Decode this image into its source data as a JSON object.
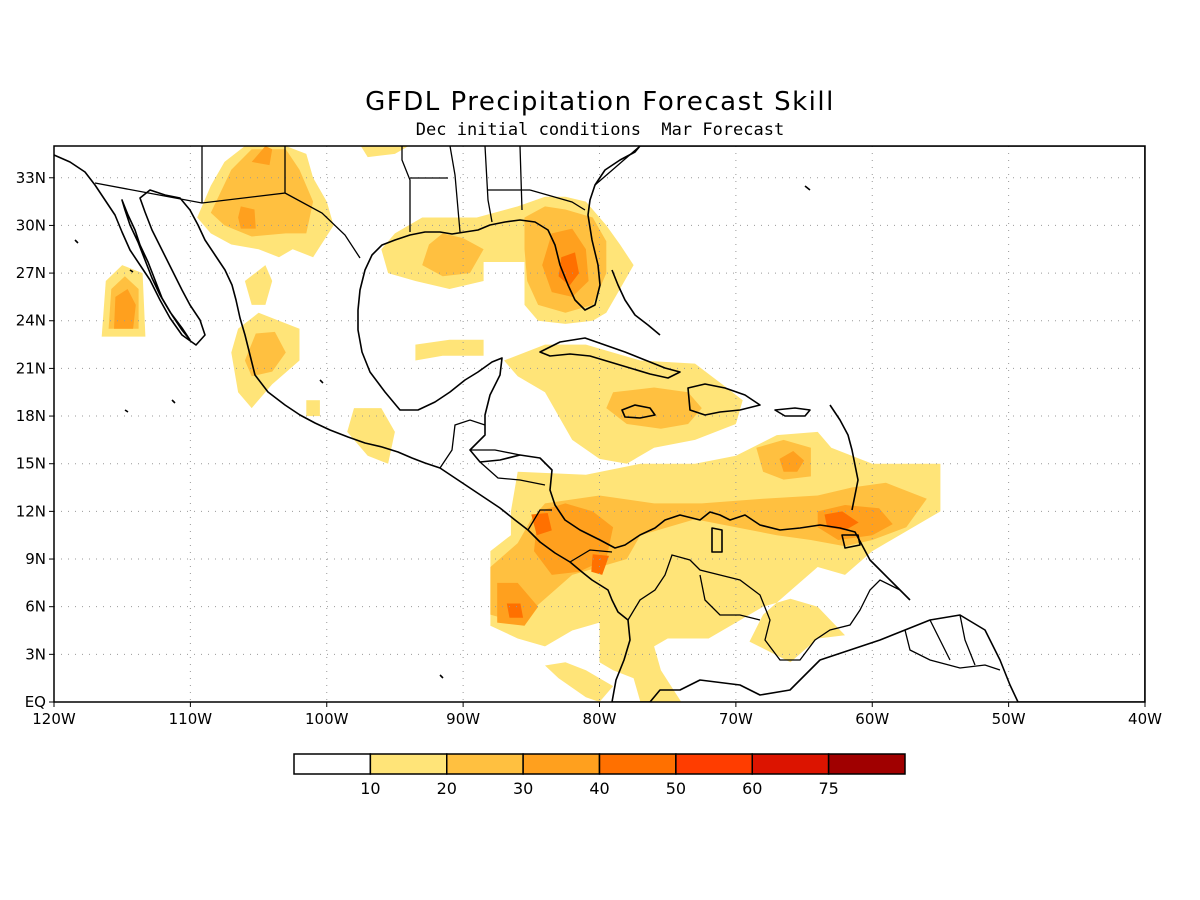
{
  "title": "GFDL Precipitation Forecast Skill",
  "subtitle": "Dec initial conditions  Mar Forecast",
  "map": {
    "lon_range": [
      -120,
      -40
    ],
    "lat_range": [
      0,
      35
    ],
    "lon_ticks": [
      {
        "value": -120,
        "label": "120W"
      },
      {
        "value": -110,
        "label": "110W"
      },
      {
        "value": -100,
        "label": "100W"
      },
      {
        "value": -90,
        "label": "90W"
      },
      {
        "value": -80,
        "label": "80W"
      },
      {
        "value": -70,
        "label": "70W"
      },
      {
        "value": -60,
        "label": "60W"
      },
      {
        "value": -50,
        "label": "50W"
      },
      {
        "value": -40,
        "label": "40W"
      }
    ],
    "lat_ticks": [
      {
        "value": 0,
        "label": "EQ"
      },
      {
        "value": 3,
        "label": "3N"
      },
      {
        "value": 6,
        "label": "6N"
      },
      {
        "value": 9,
        "label": "9N"
      },
      {
        "value": 12,
        "label": "12N"
      },
      {
        "value": 15,
        "label": "15N"
      },
      {
        "value": 18,
        "label": "18N"
      },
      {
        "value": 21,
        "label": "21N"
      },
      {
        "value": 24,
        "label": "24N"
      },
      {
        "value": 27,
        "label": "27N"
      },
      {
        "value": 30,
        "label": "30N"
      },
      {
        "value": 33,
        "label": "33N"
      }
    ],
    "grid": true
  },
  "colorbar": {
    "levels": [
      "10",
      "20",
      "30",
      "40",
      "50",
      "60",
      "75"
    ],
    "colors": [
      "#ffffff",
      "#ffe478",
      "#ffc040",
      "#ffa01e",
      "#ff7000",
      "#ff3d00",
      "#dc1400",
      "#a00000"
    ]
  },
  "skill_regions": [
    {
      "name": "baja",
      "level": 1,
      "lonlat": [
        [
          -116.5,
          23
        ],
        [
          -116.2,
          26.5
        ],
        [
          -115.0,
          27.5
        ],
        [
          -113.5,
          27.0
        ],
        [
          -113.3,
          23.0
        ]
      ]
    },
    {
      "name": "baja",
      "level": 2,
      "lonlat": [
        [
          -116.0,
          23.5
        ],
        [
          -115.8,
          26.0
        ],
        [
          -114.8,
          26.8
        ],
        [
          -113.8,
          26.0
        ],
        [
          -113.8,
          23.5
        ]
      ]
    },
    {
      "name": "baja",
      "level": 3,
      "lonlat": [
        [
          -115.6,
          23.5
        ],
        [
          -115.5,
          25.5
        ],
        [
          -114.6,
          26.0
        ],
        [
          -114.0,
          25.0
        ],
        [
          -114.2,
          23.5
        ]
      ]
    },
    {
      "name": "nw-mexico",
      "level": 1,
      "lonlat": [
        [
          -109.5,
          30.5
        ],
        [
          -108.5,
          32.5
        ],
        [
          -107.5,
          34.0
        ],
        [
          -106,
          35
        ],
        [
          -103,
          35
        ],
        [
          -101.5,
          34.5
        ],
        [
          -101.0,
          33.0
        ],
        [
          -100.0,
          31.5
        ],
        [
          -99.5,
          30.0
        ],
        [
          -101.0,
          28.0
        ],
        [
          -102.5,
          28.5
        ],
        [
          -103.5,
          28.0
        ],
        [
          -105.0,
          28.5
        ],
        [
          -107.0,
          28.8
        ],
        [
          -108.5,
          29.5
        ]
      ]
    },
    {
      "name": "nw-mexico",
      "level": 2,
      "lonlat": [
        [
          -108.5,
          30.8
        ],
        [
          -107.0,
          33.5
        ],
        [
          -105.5,
          34.8
        ],
        [
          -103.0,
          34.8
        ],
        [
          -102.0,
          33.5
        ],
        [
          -101.0,
          31.5
        ],
        [
          -101.5,
          29.5
        ],
        [
          -103.0,
          29.5
        ],
        [
          -105.5,
          29.3
        ],
        [
          -107.5,
          30.0
        ]
      ]
    },
    {
      "name": "nw-mexico",
      "level": 3,
      "lonlat": [
        [
          -106.5,
          30.5
        ],
        [
          -106.3,
          31.2
        ],
        [
          -105.3,
          31.0
        ],
        [
          -105.2,
          29.8
        ],
        [
          -106.3,
          29.8
        ]
      ]
    },
    {
      "name": "nw-mexico",
      "level": 3,
      "lonlat": [
        [
          -105.5,
          34.0
        ],
        [
          -104.5,
          35.0
        ],
        [
          -104.0,
          34.8
        ],
        [
          -104.2,
          33.8
        ]
      ]
    },
    {
      "name": "gulf-coast",
      "level": 1,
      "lonlat": [
        [
          -96,
          28.5
        ],
        [
          -95,
          29.5
        ],
        [
          -93,
          30.5
        ],
        [
          -91,
          30.5
        ],
        [
          -89,
          30.5
        ],
        [
          -86,
          31.2
        ],
        [
          -84,
          31.8
        ],
        [
          -82.5,
          31.8
        ],
        [
          -81,
          31.5
        ],
        [
          -79.5,
          30.0
        ],
        [
          -78.5,
          28.8
        ],
        [
          -77.5,
          27.5
        ],
        [
          -78.5,
          26.0
        ],
        [
          -79.5,
          24.5
        ],
        [
          -80.5,
          24.0
        ],
        [
          -82.5,
          23.8
        ],
        [
          -84.5,
          24.0
        ],
        [
          -85.5,
          25.0
        ],
        [
          -85.5,
          27.7
        ],
        [
          -88.5,
          27.7
        ],
        [
          -88.5,
          26.5
        ],
        [
          -91.0,
          26.0
        ],
        [
          -93.5,
          26.5
        ],
        [
          -95.5,
          27.0
        ]
      ]
    },
    {
      "name": "gulf-coast",
      "level": 2,
      "lonlat": [
        [
          -92.5,
          28.8
        ],
        [
          -91.5,
          29.5
        ],
        [
          -90.0,
          29.2
        ],
        [
          -88.5,
          28.5
        ],
        [
          -89.5,
          27.0
        ],
        [
          -91.5,
          26.8
        ],
        [
          -93.0,
          27.5
        ]
      ]
    },
    {
      "name": "gulf-coast",
      "level": 2,
      "lonlat": [
        [
          -85.5,
          30.5
        ],
        [
          -84,
          31.2
        ],
        [
          -82.5,
          31.0
        ],
        [
          -80.5,
          30.5
        ],
        [
          -79.5,
          29.0
        ],
        [
          -79.5,
          27.0
        ],
        [
          -80.5,
          25.0
        ],
        [
          -82.5,
          24.5
        ],
        [
          -84.5,
          25.0
        ],
        [
          -85.3,
          26.5
        ],
        [
          -85.5,
          28.5
        ]
      ]
    },
    {
      "name": "gulf-coast",
      "level": 3,
      "lonlat": [
        [
          -83.5,
          29.5
        ],
        [
          -82.0,
          29.8
        ],
        [
          -81.0,
          28.5
        ],
        [
          -80.8,
          26.5
        ],
        [
          -82.0,
          25.5
        ],
        [
          -83.5,
          25.8
        ],
        [
          -84.2,
          27.5
        ]
      ]
    },
    {
      "name": "gulf-coast",
      "level": 4,
      "lonlat": [
        [
          -82.8,
          28.0
        ],
        [
          -81.8,
          28.3
        ],
        [
          -81.5,
          27.0
        ],
        [
          -82.2,
          26.2
        ],
        [
          -83.0,
          26.8
        ]
      ]
    },
    {
      "name": "gulf-coast",
      "level": 1,
      "lonlat": [
        [
          -97.5,
          35
        ],
        [
          -94,
          35
        ],
        [
          -95,
          34.5
        ],
        [
          -97,
          34.3
        ]
      ]
    },
    {
      "name": "w-mexico",
      "level": 1,
      "lonlat": [
        [
          -107,
          22
        ],
        [
          -106.5,
          23.5
        ],
        [
          -105.0,
          24.5
        ],
        [
          -103.5,
          24.0
        ],
        [
          -102.0,
          23.5
        ],
        [
          -102.0,
          21.5
        ],
        [
          -104.0,
          20.0
        ],
        [
          -105.5,
          18.5
        ],
        [
          -106.5,
          19.5
        ]
      ]
    },
    {
      "name": "w-mexico",
      "level": 2,
      "lonlat": [
        [
          -105.2,
          23.2
        ],
        [
          -103.8,
          23.3
        ],
        [
          -103.0,
          22.0
        ],
        [
          -104.0,
          20.8
        ],
        [
          -105.5,
          20.5
        ],
        [
          -106.0,
          21.5
        ]
      ]
    },
    {
      "name": "w-mexico",
      "level": 1,
      "lonlat": [
        [
          -106.0,
          26.5
        ],
        [
          -104.5,
          27.5
        ],
        [
          -104.0,
          26.5
        ],
        [
          -104.5,
          25.0
        ],
        [
          -105.5,
          25.0
        ]
      ]
    },
    {
      "name": "s-mexico",
      "level": 1,
      "lonlat": [
        [
          -98.0,
          18.5
        ],
        [
          -96.0,
          18.5
        ],
        [
          -95.0,
          17.0
        ],
        [
          -95.5,
          15.0
        ],
        [
          -97.0,
          15.5
        ],
        [
          -98.5,
          17.0
        ]
      ]
    },
    {
      "name": "s-mexico",
      "level": 1,
      "lonlat": [
        [
          -101.5,
          19.0
        ],
        [
          -100.5,
          19.0
        ],
        [
          -100.5,
          18.0
        ],
        [
          -101.5,
          18.0
        ]
      ]
    },
    {
      "name": "yucatan-n",
      "level": 1,
      "lonlat": [
        [
          -93.5,
          22.5
        ],
        [
          -91,
          22.8
        ],
        [
          -88.5,
          22.8
        ],
        [
          -88.5,
          21.8
        ],
        [
          -91.5,
          21.8
        ],
        [
          -93.5,
          21.5
        ]
      ]
    },
    {
      "name": "caribbean",
      "level": 1,
      "lonlat": [
        [
          -87,
          21.5
        ],
        [
          -84,
          22.5
        ],
        [
          -81,
          22.5
        ],
        [
          -77,
          21.5
        ],
        [
          -73,
          21.3
        ],
        [
          -71,
          20.0
        ],
        [
          -69.5,
          19.0
        ],
        [
          -70,
          17.5
        ],
        [
          -73,
          16.5
        ],
        [
          -76,
          16.0
        ],
        [
          -78,
          15.0
        ],
        [
          -80,
          15.3
        ],
        [
          -82,
          16.5
        ],
        [
          -84,
          19.5
        ],
        [
          -86,
          20.5
        ]
      ]
    },
    {
      "name": "caribbean",
      "level": 2,
      "lonlat": [
        [
          -79,
          19.5
        ],
        [
          -76,
          19.8
        ],
        [
          -73.5,
          19.5
        ],
        [
          -72.5,
          18.5
        ],
        [
          -73.5,
          17.5
        ],
        [
          -75.5,
          17.2
        ],
        [
          -78,
          17.5
        ],
        [
          -79.5,
          18.5
        ]
      ]
    },
    {
      "name": "caribbean-south",
      "level": 1,
      "lonlat": [
        [
          -86,
          14.5
        ],
        [
          -81,
          14.3
        ],
        [
          -77,
          15.0
        ],
        [
          -73,
          15.0
        ],
        [
          -70,
          15.5
        ],
        [
          -67,
          16.8
        ],
        [
          -64,
          17.0
        ],
        [
          -63,
          16.0
        ],
        [
          -60,
          15.0
        ],
        [
          -57,
          15.0
        ],
        [
          -55,
          15.0
        ],
        [
          -55,
          12.0
        ],
        [
          -58,
          10.5
        ],
        [
          -60,
          9.5
        ],
        [
          -62,
          8.0
        ],
        [
          -64,
          8.5
        ],
        [
          -66,
          7.0
        ],
        [
          -68,
          5.5
        ],
        [
          -69,
          3.8
        ],
        [
          -66,
          2.5
        ],
        [
          -64,
          4.0
        ],
        [
          -62,
          4.2
        ],
        [
          -64,
          6.0
        ],
        [
          -66,
          6.5
        ],
        [
          -68,
          6.0
        ],
        [
          -70,
          5.0
        ],
        [
          -72,
          4.0
        ],
        [
          -75,
          4.0
        ],
        [
          -76,
          3.5
        ],
        [
          -75.5,
          2.0
        ],
        [
          -74,
          0.0
        ],
        [
          -77,
          0.0
        ],
        [
          -77.5,
          1.5
        ],
        [
          -79,
          2.0
        ],
        [
          -80,
          2.5
        ],
        [
          -80,
          5.0
        ],
        [
          -82,
          4.5
        ],
        [
          -84,
          3.5
        ],
        [
          -86,
          4.0
        ],
        [
          -88,
          4.8
        ],
        [
          -88,
          9.5
        ],
        [
          -86.5,
          10.5
        ],
        [
          -86.5,
          12.0
        ]
      ]
    },
    {
      "name": "caribbean-south",
      "level": 2,
      "lonlat": [
        [
          -84,
          12.5
        ],
        [
          -80,
          13.0
        ],
        [
          -76,
          12.5
        ],
        [
          -72.5,
          12.5
        ],
        [
          -68,
          12.8
        ],
        [
          -64,
          13.0
        ],
        [
          -61.5,
          13.5
        ],
        [
          -59,
          13.8
        ],
        [
          -56,
          12.8
        ],
        [
          -57.5,
          11.0
        ],
        [
          -60,
          10.2
        ],
        [
          -62,
          9.8
        ],
        [
          -64.5,
          10.2
        ],
        [
          -67,
          10.5
        ],
        [
          -70,
          11.0
        ],
        [
          -73,
          11.5
        ],
        [
          -77,
          10.5
        ],
        [
          -78,
          9.0
        ],
        [
          -80,
          8.5
        ],
        [
          -82,
          8.0
        ],
        [
          -84,
          6.5
        ],
        [
          -86,
          5.0
        ],
        [
          -88,
          5.5
        ],
        [
          -88,
          8.5
        ],
        [
          -86,
          10.0
        ],
        [
          -85,
          11.5
        ]
      ]
    },
    {
      "name": "caribbean-south",
      "level": 2,
      "lonlat": [
        [
          -68.5,
          16.0
        ],
        [
          -66.5,
          16.5
        ],
        [
          -64.5,
          16.0
        ],
        [
          -64.5,
          14.2
        ],
        [
          -66.5,
          14.0
        ],
        [
          -68.0,
          14.5
        ]
      ]
    },
    {
      "name": "caribbean-south",
      "level": 3,
      "lonlat": [
        [
          -84.5,
          12.0
        ],
        [
          -82.5,
          12.5
        ],
        [
          -80.5,
          12.0
        ],
        [
          -79.0,
          11.0
        ],
        [
          -79.5,
          9.0
        ],
        [
          -81.5,
          8.2
        ],
        [
          -83.5,
          8.0
        ],
        [
          -84.8,
          9.5
        ]
      ]
    },
    {
      "name": "caribbean-south",
      "level": 3,
      "lonlat": [
        [
          -66.8,
          15.3
        ],
        [
          -65.8,
          15.8
        ],
        [
          -65.0,
          15.2
        ],
        [
          -65.5,
          14.5
        ],
        [
          -66.5,
          14.5
        ]
      ]
    },
    {
      "name": "caribbean-south",
      "level": 3,
      "lonlat": [
        [
          -64,
          12.0
        ],
        [
          -62,
          12.4
        ],
        [
          -59.5,
          12.2
        ],
        [
          -58.5,
          11.2
        ],
        [
          -60,
          10.5
        ],
        [
          -62.5,
          10.2
        ],
        [
          -64,
          11.0
        ]
      ]
    },
    {
      "name": "caribbean-south",
      "level": 3,
      "lonlat": [
        [
          -87.5,
          7.5
        ],
        [
          -86,
          7.5
        ],
        [
          -84.5,
          6.0
        ],
        [
          -85.5,
          4.8
        ],
        [
          -87.5,
          5.0
        ]
      ]
    },
    {
      "name": "caribbean-south",
      "level": 4,
      "lonlat": [
        [
          -63.5,
          11.8
        ],
        [
          -62.2,
          12.0
        ],
        [
          -61.0,
          11.3
        ],
        [
          -62.0,
          10.8
        ],
        [
          -63.3,
          11.0
        ]
      ]
    },
    {
      "name": "caribbean-south",
      "level": 4,
      "lonlat": [
        [
          -85.0,
          11.8
        ],
        [
          -83.8,
          11.9
        ],
        [
          -83.5,
          10.8
        ],
        [
          -84.6,
          10.5
        ]
      ]
    },
    {
      "name": "caribbean-south",
      "level": 4,
      "lonlat": [
        [
          -80.5,
          9.3
        ],
        [
          -79.3,
          9.2
        ],
        [
          -79.8,
          8.0
        ],
        [
          -80.6,
          8.2
        ]
      ]
    },
    {
      "name": "caribbean-south",
      "level": 4,
      "lonlat": [
        [
          -86.8,
          6.2
        ],
        [
          -85.8,
          6.2
        ],
        [
          -85.6,
          5.3
        ],
        [
          -86.6,
          5.3
        ]
      ]
    },
    {
      "name": "pacific-sw",
      "level": 1,
      "lonlat": [
        [
          -84,
          2.3
        ],
        [
          -83,
          1.5
        ],
        [
          -81,
          0.3
        ],
        [
          -80,
          0.0
        ],
        [
          -79,
          1.0
        ],
        [
          -81,
          2.0
        ],
        [
          -82.5,
          2.5
        ]
      ]
    }
  ]
}
